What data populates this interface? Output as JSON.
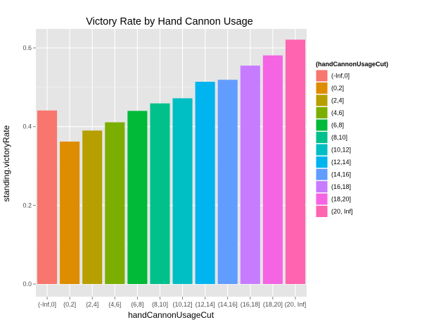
{
  "chart_data": {
    "type": "bar",
    "title": "Victory Rate by Hand Cannon Usage",
    "xlabel": "handCannonUsageCut",
    "ylabel": "standing.victoryRate",
    "categories": [
      "(-Inf,0]",
      "(0,2]",
      "(2,4]",
      "(4,6]",
      "(6,8]",
      "(8,10]",
      "(10,12]",
      "(12,14]",
      "(14,16]",
      "(16,18]",
      "(18,20]",
      "(20, Inf]"
    ],
    "values": [
      0.441,
      0.362,
      0.39,
      0.411,
      0.44,
      0.459,
      0.472,
      0.514,
      0.519,
      0.555,
      0.581,
      0.621
    ],
    "colors": [
      "#F8766D",
      "#DE8C00",
      "#B79F00",
      "#7CAE00",
      "#00BA38",
      "#00C08B",
      "#00BFC4",
      "#00B4F0",
      "#619CFF",
      "#C77CFF",
      "#F564E3",
      "#FF64B0"
    ],
    "ylim": [
      0,
      0.65
    ],
    "yticks": [
      0.0,
      0.2,
      0.4,
      0.6
    ],
    "ytick_labels": [
      "0.0",
      "0.2",
      "0.4",
      "0.6"
    ],
    "grid": true,
    "legend": {
      "title": "(handCannonUsageCut)",
      "placement": "right",
      "entries": [
        "(-Inf,0]",
        "(0,2]",
        "(2,4]",
        "(4,6]",
        "(6,8]",
        "(8,10]",
        "(10,12]",
        "(12,14]",
        "(14,16]",
        "(16,18]",
        "(18,20]",
        "(20, Inf]"
      ]
    }
  }
}
